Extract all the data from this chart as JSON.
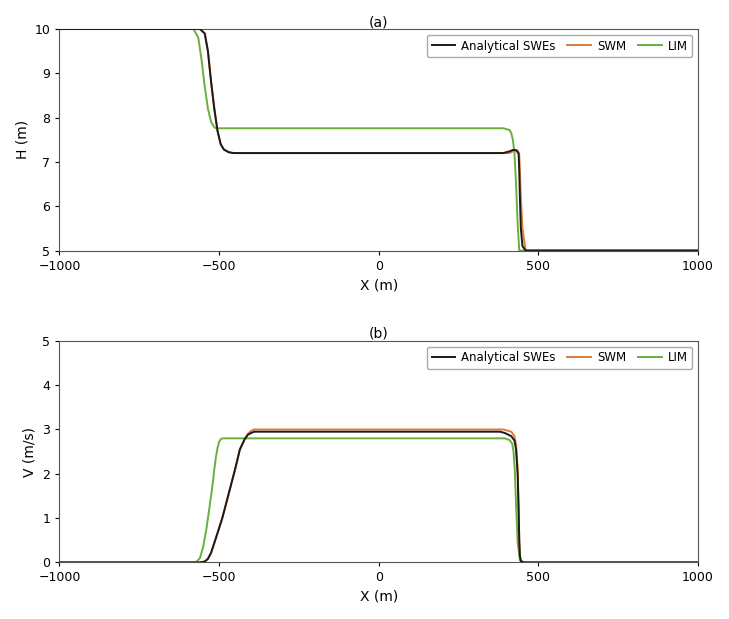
{
  "title_a": "(a)",
  "title_b": "(b)",
  "xlabel": "X (m)",
  "ylabel_a": "H (m)",
  "ylabel_b": "V (m/s)",
  "xlim": [
    -1000,
    1000
  ],
  "ylim_a": [
    5,
    10
  ],
  "ylim_b": [
    0,
    5
  ],
  "xticks": [
    -1000,
    -500,
    0,
    500,
    1000
  ],
  "yticks_a": [
    5,
    6,
    7,
    8,
    9,
    10
  ],
  "yticks_b": [
    0,
    1,
    2,
    3,
    4,
    5
  ],
  "colors": {
    "analytical": "#1a1a1a",
    "swm": "#E07B39",
    "lim": "#6AAF3D"
  },
  "legend_labels": [
    "Analytical SWEs",
    "SWM",
    "LIM"
  ],
  "linewidth": 1.4,
  "background_color": "#ffffff",
  "H_analytical": {
    "x": [
      -1000,
      -620,
      -600,
      -580,
      -560,
      -545,
      -535,
      -525,
      -515,
      -505,
      -495,
      -485,
      -470,
      -455,
      -440,
      -430,
      -420,
      -410,
      -400,
      -390,
      -380,
      -370,
      370,
      390,
      410,
      420,
      425,
      430,
      435,
      438,
      440,
      442,
      445,
      450,
      460,
      1000
    ],
    "y": [
      10.0,
      10.0,
      10.0,
      10.0,
      10.0,
      9.9,
      9.5,
      8.8,
      8.2,
      7.7,
      7.4,
      7.28,
      7.22,
      7.2,
      7.2,
      7.2,
      7.2,
      7.2,
      7.2,
      7.2,
      7.2,
      7.2,
      7.2,
      7.2,
      7.24,
      7.27,
      7.27,
      7.26,
      7.22,
      7.18,
      6.8,
      6.2,
      5.5,
      5.1,
      5.0,
      5.0
    ]
  },
  "H_swm": {
    "x": [
      -1000,
      -620,
      -600,
      -580,
      -560,
      -545,
      -535,
      -525,
      -515,
      -505,
      -495,
      -485,
      -470,
      -455,
      -440,
      -430,
      -420,
      -410,
      410,
      420,
      425,
      430,
      435,
      438,
      440,
      442,
      445,
      450,
      460,
      1000
    ],
    "y": [
      10.0,
      10.0,
      10.0,
      10.0,
      10.0,
      9.9,
      9.5,
      8.8,
      8.2,
      7.7,
      7.4,
      7.28,
      7.22,
      7.2,
      7.2,
      7.2,
      7.2,
      7.2,
      7.2,
      7.24,
      7.27,
      7.27,
      7.26,
      7.22,
      7.18,
      6.8,
      6.2,
      5.5,
      5.0,
      5.0
    ]
  },
  "H_lim": {
    "x": [
      -1000,
      -620,
      -600,
      -580,
      -565,
      -555,
      -545,
      -535,
      -525,
      -515,
      -510,
      -505,
      -500,
      -495,
      -490,
      -485,
      -480,
      -475,
      360,
      390,
      410,
      415,
      420,
      425,
      430,
      435,
      440,
      450,
      1000
    ],
    "y": [
      10.0,
      10.0,
      10.0,
      10.0,
      9.8,
      9.3,
      8.7,
      8.2,
      7.9,
      7.78,
      7.76,
      7.76,
      7.76,
      7.76,
      7.76,
      7.76,
      7.76,
      7.76,
      7.76,
      7.76,
      7.72,
      7.65,
      7.5,
      7.2,
      6.5,
      5.6,
      5.0,
      5.0,
      5.0
    ]
  },
  "V_analytical": {
    "x": [
      -1000,
      -560,
      -545,
      -535,
      -525,
      -510,
      -490,
      -470,
      -450,
      -435,
      -420,
      -410,
      -400,
      -390,
      -375,
      380,
      395,
      415,
      425,
      430,
      435,
      438,
      440,
      442,
      445,
      455,
      1000
    ],
    "y": [
      0.0,
      0.0,
      0.02,
      0.08,
      0.22,
      0.55,
      1.0,
      1.55,
      2.1,
      2.55,
      2.78,
      2.88,
      2.92,
      2.95,
      2.95,
      2.95,
      2.92,
      2.85,
      2.75,
      2.55,
      2.0,
      1.2,
      0.5,
      0.15,
      0.03,
      0.0,
      0.0
    ]
  },
  "V_swm": {
    "x": [
      -1000,
      -560,
      -545,
      -535,
      -525,
      -510,
      -490,
      -470,
      -450,
      -435,
      -420,
      -410,
      -400,
      -390,
      390,
      415,
      425,
      430,
      435,
      438,
      440,
      442,
      445,
      455,
      1000
    ],
    "y": [
      0.0,
      0.0,
      0.02,
      0.08,
      0.22,
      0.55,
      1.0,
      1.55,
      2.1,
      2.55,
      2.78,
      2.9,
      2.97,
      3.0,
      3.0,
      2.95,
      2.85,
      2.65,
      2.1,
      1.2,
      0.5,
      0.15,
      0.03,
      0.0,
      0.0
    ]
  },
  "V_lim": {
    "x": [
      -1000,
      -580,
      -570,
      -560,
      -550,
      -540,
      -530,
      -520,
      -515,
      -510,
      -505,
      -500,
      -495,
      -490,
      -485,
      395,
      410,
      418,
      422,
      426,
      430,
      435,
      442,
      450,
      1000
    ],
    "y": [
      0.0,
      0.0,
      0.02,
      0.1,
      0.35,
      0.75,
      1.25,
      1.78,
      2.1,
      2.38,
      2.58,
      2.72,
      2.78,
      2.8,
      2.8,
      2.8,
      2.76,
      2.68,
      2.5,
      2.1,
      1.3,
      0.45,
      0.05,
      0.0,
      0.0
    ]
  }
}
